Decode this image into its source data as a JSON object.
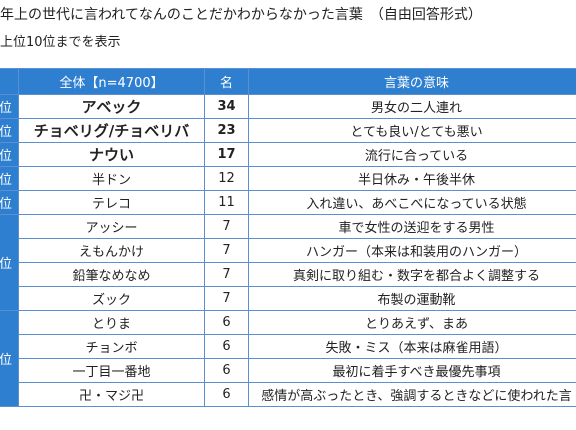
{
  "title": "年上の世代に言われてなんのことだかわからなかった言葉　（自由回答形式）",
  "subtitle": "上位10位までを表示",
  "headers": {
    "rank": "",
    "word": "全体【n=4700】",
    "count": "名",
    "meaning": "言葉の意味"
  },
  "rows": [
    {
      "rank": "位",
      "word": "アベック",
      "count": "34",
      "meaning": "男女の二人連れ"
    },
    {
      "rank": "位",
      "word": "チョベリグ/チョベリバ",
      "count": "23",
      "meaning": "とても良い/とても悪い"
    },
    {
      "rank": "位",
      "word": "ナウい",
      "count": "17",
      "meaning": "流行に合っている"
    },
    {
      "rank": "位",
      "word": "半ドン",
      "count": "12",
      "meaning": "半日休み・午後半休"
    },
    {
      "rank": "位",
      "word": "テレコ",
      "count": "11",
      "meaning": "入れ違い、あべこべになっている状態"
    },
    {
      "rank": "位",
      "word": "アッシー",
      "count": "7",
      "meaning": "車で女性の送迎をする男性"
    },
    {
      "rank": "",
      "word": "えもんかけ",
      "count": "7",
      "meaning": "ハンガー（本来は和装用のハンガー）"
    },
    {
      "rank": "",
      "word": "鉛筆なめなめ",
      "count": "7",
      "meaning": "真剣に取り組む・数字を都合よく調整する"
    },
    {
      "rank": "",
      "word": "ズック",
      "count": "7",
      "meaning": "布製の運動靴"
    },
    {
      "rank": "位",
      "word": "とりま",
      "count": "6",
      "meaning": "とりあえず、まあ"
    },
    {
      "rank": "",
      "word": "チョンボ",
      "count": "6",
      "meaning": "失敗・ミス（本来は麻雀用語）"
    },
    {
      "rank": "",
      "word": "一丁目一番地",
      "count": "6",
      "meaning": "最初に着手すべき最優先事項"
    },
    {
      "rank": "",
      "word": "卍・マジ卍",
      "count": "6",
      "meaning": "感情が高ぶったとき、強調するときなどに使われた言"
    }
  ]
}
